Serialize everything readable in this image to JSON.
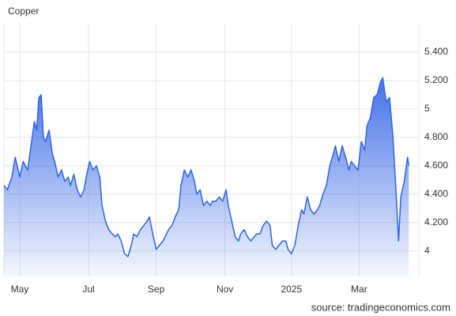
{
  "chart_data": {
    "type": "area",
    "title": "Copper",
    "source": "source: tradingeconomics.com",
    "color": "#2f62e6",
    "grid": true,
    "xlim": [
      0,
      368
    ],
    "xticks": [
      {
        "value": 14,
        "label": "May"
      },
      {
        "value": 75,
        "label": "Jul"
      },
      {
        "value": 135,
        "label": "Sep"
      },
      {
        "value": 196,
        "label": "Nov"
      },
      {
        "value": 255,
        "label": "2025"
      },
      {
        "value": 315,
        "label": "Mar"
      }
    ],
    "ylim": [
      3.82,
      5.6
    ],
    "yticks": [
      4,
      {
        "value": 4.2,
        "label": "4.200"
      },
      {
        "value": 4.4,
        "label": "4.400"
      },
      {
        "value": 4.6,
        "label": "4.600"
      },
      {
        "value": 4.8,
        "label": "4.800"
      },
      5,
      {
        "value": 5.2,
        "label": "5.200"
      },
      {
        "value": 5.4,
        "label": "5.400"
      }
    ],
    "x": [
      0,
      3,
      7,
      10,
      14,
      17,
      21,
      24,
      27,
      29,
      31,
      33,
      35,
      37,
      40,
      43,
      45,
      48,
      51,
      54,
      57,
      59,
      62,
      65,
      68,
      71,
      73,
      76,
      79,
      82,
      85,
      87,
      90,
      93,
      96,
      99,
      101,
      104,
      107,
      110,
      113,
      115,
      118,
      121,
      124,
      127,
      129,
      132,
      135,
      138,
      141,
      143,
      146,
      149,
      152,
      155,
      157,
      160,
      163,
      166,
      169,
      171,
      174,
      177,
      180,
      183,
      185,
      188,
      191,
      194,
      197,
      199,
      202,
      205,
      208,
      210,
      213,
      216,
      219,
      222,
      224,
      227,
      230,
      233,
      236,
      238,
      241,
      244,
      247,
      250,
      252,
      255,
      258,
      261,
      264,
      266,
      269,
      272,
      275,
      278,
      280,
      283,
      286,
      289,
      292,
      294,
      297,
      300,
      303,
      306,
      308,
      311,
      314,
      317,
      320,
      322,
      325,
      328,
      331,
      334,
      336,
      339,
      342,
      345,
      348,
      350,
      352,
      355,
      358,
      359
    ],
    "values": [
      4.46,
      4.43,
      4.52,
      4.66,
      4.52,
      4.63,
      4.57,
      4.74,
      4.91,
      4.85,
      5.08,
      5.1,
      4.8,
      4.77,
      4.85,
      4.68,
      4.63,
      4.52,
      4.57,
      4.49,
      4.52,
      4.46,
      4.54,
      4.43,
      4.38,
      4.43,
      4.52,
      4.63,
      4.57,
      4.6,
      4.52,
      4.32,
      4.21,
      4.15,
      4.12,
      4.1,
      4.12,
      4.07,
      3.98,
      3.96,
      4.04,
      4.12,
      4.1,
      4.15,
      4.18,
      4.21,
      4.24,
      4.12,
      4.01,
      4.04,
      4.07,
      4.1,
      4.15,
      4.18,
      4.24,
      4.29,
      4.46,
      4.57,
      4.52,
      4.57,
      4.49,
      4.4,
      4.43,
      4.32,
      4.35,
      4.32,
      4.35,
      4.35,
      4.38,
      4.35,
      4.43,
      4.32,
      4.21,
      4.1,
      4.07,
      4.12,
      4.15,
      4.1,
      4.07,
      4.1,
      4.12,
      4.12,
      4.18,
      4.21,
      4.18,
      4.04,
      4.01,
      4.04,
      4.07,
      4.07,
      4.01,
      3.98,
      4.04,
      4.18,
      4.29,
      4.26,
      4.38,
      4.29,
      4.26,
      4.29,
      4.32,
      4.4,
      4.46,
      4.6,
      4.68,
      4.74,
      4.63,
      4.74,
      4.66,
      4.57,
      4.63,
      4.6,
      4.57,
      4.77,
      4.71,
      4.88,
      4.94,
      5.08,
      5.1,
      5.19,
      5.22,
      5.05,
      5.08,
      4.8,
      4.38,
      4.07,
      4.38,
      4.49,
      4.66,
      4.6
    ]
  }
}
